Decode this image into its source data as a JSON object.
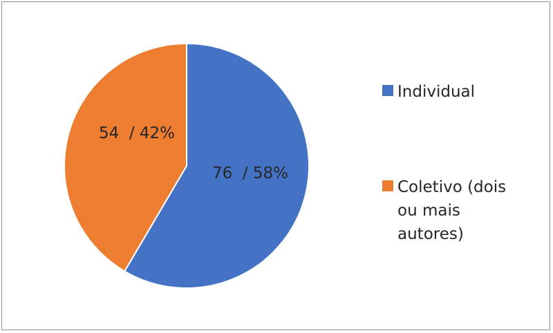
{
  "chart_data": {
    "type": "pie",
    "slices": [
      {
        "label": "Individual",
        "value": 76,
        "percent": "58%",
        "data_label": "76  / 58%",
        "color": "#4472C4"
      },
      {
        "label": "Coletivo (dois ou mais autores)",
        "value": 54,
        "percent": "42%",
        "data_label": "54  / 42%",
        "color": "#ED7D31"
      }
    ],
    "legend_position": "right"
  },
  "legend": {
    "items": [
      {
        "label": "Individual",
        "color": "#4472C4"
      },
      {
        "label_lines": [
          "Coletivo (dois",
          "ou mais",
          "autores)"
        ],
        "color": "#ED7D31"
      }
    ]
  }
}
